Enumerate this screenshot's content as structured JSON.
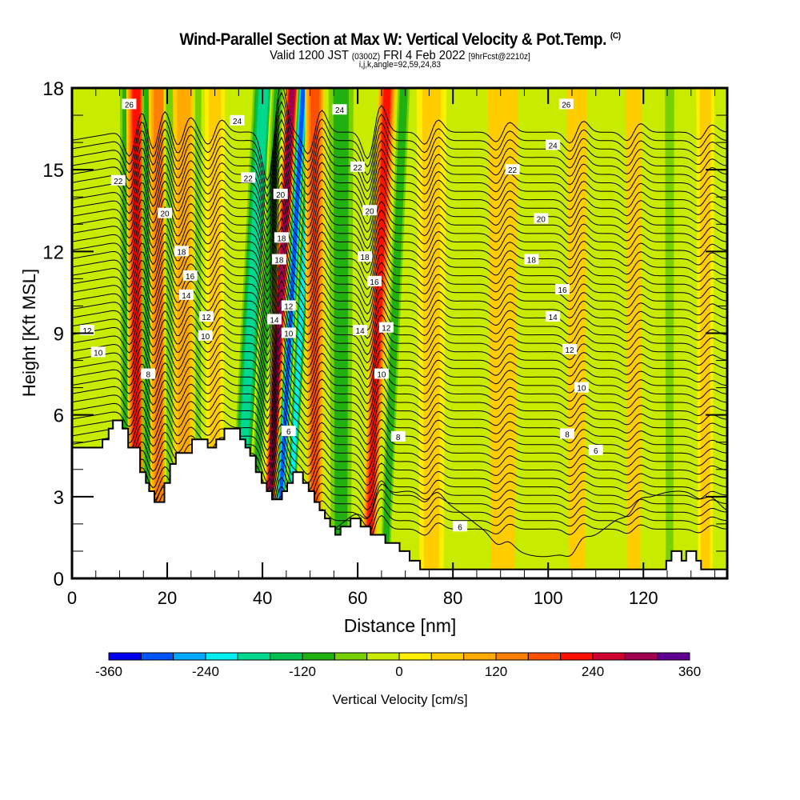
{
  "chart_data": {
    "type": "heatmap",
    "title": "Wind-Parallel Section at Max W: Vertical Velocity & Pot.Temp.",
    "title_mark": "(C)",
    "subtitle_main": "Valid 1200 JST",
    "subtitle_utc": "(0300Z)",
    "subtitle_date": "FRI 4 Feb 2022",
    "subtitle_fcst": "[9hrFcst@2210z]",
    "subtitle2": "i,j,k,angle=92,59,24,83",
    "xlabel": "Distance [nm]",
    "ylabel": "Height [Kft MSL]",
    "xlim": [
      0,
      137.6
    ],
    "ylim": [
      0,
      18
    ],
    "xticks": [
      0,
      20,
      40,
      60,
      80,
      100,
      120
    ],
    "yticks": [
      0,
      3,
      6,
      9,
      12,
      15,
      18
    ],
    "colorbar": {
      "label": "Vertical Velocity [cm/s]",
      "range": [
        -360,
        360
      ],
      "step": 40,
      "tick_labels": [
        "-360",
        "-240",
        "-120",
        "0",
        "120",
        "240",
        "360"
      ],
      "colors": [
        "#0000f0",
        "#0055ff",
        "#00aaff",
        "#00f0f0",
        "#00d890",
        "#00c050",
        "#20b010",
        "#78d000",
        "#c8ec00",
        "#ffee00",
        "#ffcc00",
        "#ffaa00",
        "#ff8000",
        "#ff5000",
        "#ff1000",
        "#d00030",
        "#a00050",
        "#600090"
      ]
    },
    "terrain_kft": [
      [
        0,
        4.8
      ],
      [
        6.4,
        4.8
      ],
      [
        6.4,
        5.1
      ],
      [
        7.7,
        5.1
      ],
      [
        7.7,
        5.5
      ],
      [
        8.6,
        5.5
      ],
      [
        8.6,
        5.8
      ],
      [
        10.6,
        5.8
      ],
      [
        10.6,
        5.5
      ],
      [
        11.8,
        5.5
      ],
      [
        11.8,
        4.8
      ],
      [
        14.3,
        4.8
      ],
      [
        14.3,
        3.9
      ],
      [
        15.5,
        3.9
      ],
      [
        15.5,
        3.5
      ],
      [
        16.2,
        3.5
      ],
      [
        16.2,
        3.2
      ],
      [
        17.3,
        3.2
      ],
      [
        17.3,
        2.8
      ],
      [
        19.4,
        2.8
      ],
      [
        19.4,
        3.5
      ],
      [
        20.6,
        3.5
      ],
      [
        20.6,
        4.2
      ],
      [
        21.8,
        4.2
      ],
      [
        21.8,
        4.6
      ],
      [
        25.2,
        4.6
      ],
      [
        25.2,
        5.1
      ],
      [
        28.5,
        5.1
      ],
      [
        28.5,
        4.8
      ],
      [
        30.3,
        4.8
      ],
      [
        30.3,
        5.1
      ],
      [
        32.0,
        5.1
      ],
      [
        32.0,
        5.5
      ],
      [
        35.3,
        5.5
      ],
      [
        35.3,
        5.1
      ],
      [
        36.4,
        5.1
      ],
      [
        36.4,
        4.8
      ],
      [
        37.4,
        4.8
      ],
      [
        37.4,
        4.5
      ],
      [
        38.6,
        4.5
      ],
      [
        38.6,
        3.9
      ],
      [
        39.8,
        3.9
      ],
      [
        39.8,
        3.5
      ],
      [
        40.9,
        3.5
      ],
      [
        40.9,
        3.2
      ],
      [
        42.0,
        3.2
      ],
      [
        42.0,
        2.9
      ],
      [
        44.1,
        2.9
      ],
      [
        44.1,
        3.2
      ],
      [
        45.2,
        3.2
      ],
      [
        45.2,
        3.5
      ],
      [
        46.4,
        3.5
      ],
      [
        46.4,
        3.9
      ],
      [
        48.5,
        3.9
      ],
      [
        48.5,
        3.5
      ],
      [
        49.7,
        3.5
      ],
      [
        49.7,
        3.2
      ],
      [
        50.9,
        3.2
      ],
      [
        50.9,
        2.8
      ],
      [
        52.0,
        2.8
      ],
      [
        52.0,
        2.5
      ],
      [
        53.1,
        2.5
      ],
      [
        53.1,
        2.2
      ],
      [
        54.2,
        2.2
      ],
      [
        54.2,
        1.9
      ],
      [
        55.3,
        1.9
      ],
      [
        55.3,
        1.6
      ],
      [
        56.4,
        1.6
      ],
      [
        56.4,
        1.9
      ],
      [
        58.5,
        1.9
      ],
      [
        58.5,
        2.2
      ],
      [
        60.6,
        2.2
      ],
      [
        60.6,
        1.9
      ],
      [
        62.7,
        1.9
      ],
      [
        62.7,
        1.6
      ],
      [
        65.8,
        1.6
      ],
      [
        65.8,
        1.3
      ],
      [
        68.8,
        1.3
      ],
      [
        68.8,
        1.0
      ],
      [
        70.9,
        1.0
      ],
      [
        70.9,
        0.65
      ],
      [
        73.1,
        0.65
      ],
      [
        73.1,
        0.33
      ],
      [
        124.8,
        0.33
      ],
      [
        124.8,
        0.65
      ],
      [
        125.9,
        0.65
      ],
      [
        125.9,
        1.0
      ],
      [
        128.0,
        1.0
      ],
      [
        128.0,
        0.65
      ],
      [
        129.0,
        0.65
      ],
      [
        129.0,
        1.0
      ],
      [
        131.1,
        1.0
      ],
      [
        131.1,
        0.65
      ],
      [
        132.1,
        0.65
      ],
      [
        132.1,
        0.33
      ],
      [
        137.6,
        0.33
      ]
    ],
    "velocity_bands": [
      {
        "x": 11.5,
        "w": 1.8,
        "v": -110
      },
      {
        "x": 13.5,
        "w": 2.0,
        "v": 200
      },
      {
        "x": 16.0,
        "w": 1.3,
        "v": -90
      },
      {
        "x": 18.2,
        "w": 2.0,
        "v": 120
      },
      {
        "x": 20.5,
        "w": 1.2,
        "v": -60
      },
      {
        "x": 23.5,
        "w": 2.2,
        "v": 90
      },
      {
        "x": 26.5,
        "w": 1.0,
        "v": -60
      },
      {
        "x": 30.0,
        "w": 2.0,
        "v": 70
      },
      {
        "x": 36.5,
        "w": 2.5,
        "v": -200
      },
      {
        "x": 39.5,
        "w": 1.5,
        "v": -120
      },
      {
        "x": 42.5,
        "w": 1.5,
        "v": 300
      },
      {
        "x": 44.8,
        "w": 1.2,
        "v": -300
      },
      {
        "x": 47.0,
        "w": 1.2,
        "v": -220
      },
      {
        "x": 51.0,
        "w": 2.0,
        "v": 170
      },
      {
        "x": 56.5,
        "w": 2.5,
        "v": -90
      },
      {
        "x": 63.5,
        "w": 1.8,
        "v": 200
      },
      {
        "x": 67.0,
        "w": 1.6,
        "v": -110
      },
      {
        "x": 75.5,
        "w": 3.0,
        "v": 60
      },
      {
        "x": 84.5,
        "w": 2.8,
        "v": -40
      },
      {
        "x": 90.5,
        "w": 3.0,
        "v": 40
      },
      {
        "x": 98.5,
        "w": 2.0,
        "v": -30
      },
      {
        "x": 106.0,
        "w": 2.0,
        "v": 50
      },
      {
        "x": 111.0,
        "w": 2.0,
        "v": -20
      },
      {
        "x": 118.0,
        "w": 1.6,
        "v": 50
      },
      {
        "x": 125.5,
        "w": 1.5,
        "v": -70
      },
      {
        "x": 133.0,
        "w": 1.8,
        "v": 60
      }
    ],
    "theta_contours": {
      "levels": [
        6,
        8,
        10,
        12,
        14,
        16,
        18,
        20,
        22,
        24,
        26
      ],
      "labels": [
        {
          "text": "26",
          "x": 12.0,
          "y": 17.4
        },
        {
          "text": "24",
          "x": 34.7,
          "y": 16.8
        },
        {
          "text": "22",
          "x": 9.7,
          "y": 14.6
        },
        {
          "text": "22",
          "x": 37.0,
          "y": 14.7
        },
        {
          "text": "20",
          "x": 19.5,
          "y": 13.4
        },
        {
          "text": "20",
          "x": 43.8,
          "y": 14.1
        },
        {
          "text": "18",
          "x": 23.0,
          "y": 12.0
        },
        {
          "text": "18",
          "x": 44.0,
          "y": 12.5
        },
        {
          "text": "18",
          "x": 43.5,
          "y": 11.7
        },
        {
          "text": "16",
          "x": 24.8,
          "y": 11.1
        },
        {
          "text": "14",
          "x": 24.0,
          "y": 10.4
        },
        {
          "text": "14",
          "x": 42.5,
          "y": 9.5
        },
        {
          "text": "12",
          "x": 28.2,
          "y": 9.6
        },
        {
          "text": "12",
          "x": 3.2,
          "y": 9.1
        },
        {
          "text": "12",
          "x": 45.5,
          "y": 10.0
        },
        {
          "text": "10",
          "x": 28.0,
          "y": 8.9
        },
        {
          "text": "10",
          "x": 5.5,
          "y": 8.3
        },
        {
          "text": "10",
          "x": 45.5,
          "y": 9.0
        },
        {
          "text": "8",
          "x": 16.0,
          "y": 7.5
        },
        {
          "text": "6",
          "x": 45.5,
          "y": 5.4
        },
        {
          "text": "24",
          "x": 56.2,
          "y": 17.2
        },
        {
          "text": "22",
          "x": 60.0,
          "y": 15.1
        },
        {
          "text": "20",
          "x": 62.5,
          "y": 13.5
        },
        {
          "text": "18",
          "x": 61.5,
          "y": 11.8
        },
        {
          "text": "16",
          "x": 63.5,
          "y": 10.9
        },
        {
          "text": "14",
          "x": 60.5,
          "y": 9.1
        },
        {
          "text": "12",
          "x": 66.0,
          "y": 9.2
        },
        {
          "text": "10",
          "x": 65.0,
          "y": 7.5
        },
        {
          "text": "8",
          "x": 68.5,
          "y": 5.2
        },
        {
          "text": "6",
          "x": 81.5,
          "y": 1.9
        },
        {
          "text": "26",
          "x": 103.8,
          "y": 17.4
        },
        {
          "text": "24",
          "x": 101.0,
          "y": 15.9
        },
        {
          "text": "22",
          "x": 92.5,
          "y": 15.0
        },
        {
          "text": "20",
          "x": 98.5,
          "y": 13.2
        },
        {
          "text": "18",
          "x": 96.5,
          "y": 11.7
        },
        {
          "text": "16",
          "x": 103.0,
          "y": 10.6
        },
        {
          "text": "14",
          "x": 101.0,
          "y": 9.6
        },
        {
          "text": "12",
          "x": 104.5,
          "y": 8.4
        },
        {
          "text": "10",
          "x": 107.0,
          "y": 7.0
        },
        {
          "text": "8",
          "x": 104.0,
          "y": 5.3
        },
        {
          "text": "6",
          "x": 110.0,
          "y": 4.7
        }
      ]
    }
  }
}
